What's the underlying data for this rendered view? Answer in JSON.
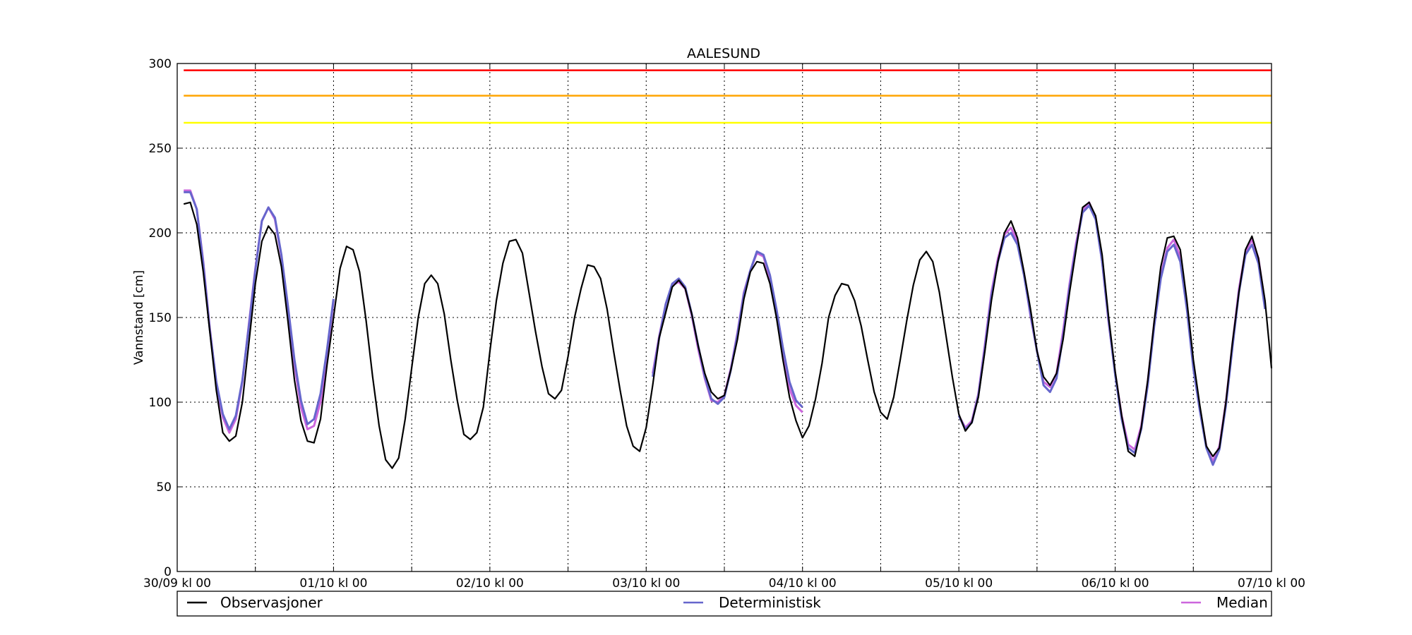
{
  "chart_data": {
    "type": "line",
    "title": "AALESUND",
    "ylabel": "Vannstand [cm]",
    "xlabel": "",
    "xlim": [
      0,
      168
    ],
    "ylim": [
      0,
      300
    ],
    "grid": true,
    "legend_position": "bottom",
    "x_unit": "hours since 30/09 kl 00",
    "x_ticks": [
      0,
      24,
      48,
      72,
      96,
      120,
      144,
      168
    ],
    "x_tick_labels": [
      "30/09 kl 00",
      "01/10 kl 00",
      "02/10 kl 00",
      "03/10 kl 00",
      "04/10 kl 00",
      "05/10 kl 00",
      "06/10 kl 00",
      "07/10 kl 00"
    ],
    "y_ticks": [
      0,
      50,
      100,
      150,
      200,
      250,
      300
    ],
    "thresholds": [
      {
        "value": 296,
        "color": "#ff0000"
      },
      {
        "value": 281,
        "color": "#ffa500"
      },
      {
        "value": 265,
        "color": "#ffff00"
      }
    ],
    "series": [
      {
        "name": "Observasjoner",
        "color": "#000000",
        "x": [
          1,
          2,
          3,
          4,
          5,
          6,
          7,
          8,
          9,
          10,
          11,
          12,
          13,
          14,
          15,
          16,
          17,
          18,
          19,
          20,
          21,
          22,
          23,
          24,
          25,
          26,
          27,
          28,
          29,
          30,
          31,
          32,
          33,
          34,
          35,
          36,
          37,
          38,
          39,
          40,
          41,
          42,
          43,
          44,
          45,
          46,
          47,
          48,
          49,
          50,
          51,
          52,
          53,
          54,
          55,
          56,
          57,
          58,
          59,
          60,
          61,
          62,
          63,
          64,
          65,
          66,
          67,
          68,
          69,
          70,
          71,
          72,
          73,
          74,
          75,
          76,
          77,
          78,
          79,
          80,
          81,
          82,
          83,
          84,
          85,
          86,
          87,
          88,
          89,
          90,
          91,
          92,
          93,
          94,
          95,
          96,
          97,
          98,
          99,
          100,
          101,
          102,
          103,
          104,
          105,
          106,
          107,
          108,
          109,
          110,
          111,
          112,
          113,
          114,
          115,
          116,
          117,
          118,
          119,
          120,
          121,
          122,
          123,
          124,
          125,
          126,
          127,
          128,
          129,
          130,
          131,
          132,
          133,
          134,
          135,
          136,
          137,
          138,
          139,
          140,
          141,
          142,
          143,
          144,
          145,
          146,
          147,
          148,
          149,
          150,
          151,
          152,
          153,
          154,
          155,
          156,
          157,
          158,
          159,
          160,
          161,
          162,
          163,
          164,
          165,
          166,
          167,
          168
        ],
        "values": [
          217,
          218,
          205,
          177,
          142,
          107,
          82,
          77,
          80,
          100,
          135,
          170,
          195,
          204,
          199,
          180,
          148,
          113,
          89,
          77,
          76,
          90,
          122,
          150,
          179,
          192,
          190,
          177,
          148,
          115,
          86,
          66,
          61,
          67,
          90,
          120,
          150,
          170,
          175,
          170,
          152,
          125,
          101,
          81,
          78,
          82,
          97,
          130,
          160,
          182,
          195,
          196,
          188,
          165,
          142,
          121,
          105,
          102,
          107,
          127,
          150,
          167,
          181,
          180,
          173,
          155,
          130,
          107,
          86,
          74,
          71,
          85,
          110,
          138,
          153,
          168,
          172,
          167,
          152,
          133,
          117,
          106,
          102,
          104,
          119,
          137,
          161,
          177,
          183,
          182,
          170,
          150,
          125,
          103,
          89,
          79,
          86,
          102,
          123,
          150,
          163,
          170,
          169,
          160,
          145,
          125,
          106,
          94,
          90,
          103,
          125,
          148,
          169,
          184,
          189,
          183,
          165,
          140,
          115,
          93,
          83,
          88,
          103,
          130,
          160,
          183,
          200,
          207,
          197,
          177,
          155,
          130,
          115,
          110,
          117,
          137,
          165,
          190,
          215,
          218,
          210,
          187,
          150,
          118,
          92,
          71,
          68,
          85,
          113,
          148,
          180,
          197,
          198,
          190,
          160,
          125,
          98,
          74,
          68,
          73,
          100,
          135,
          165,
          190,
          198,
          185,
          160,
          120
        ]
      },
      {
        "name": "Deterministisk",
        "color": "#6666cc",
        "segments": [
          {
            "x": [
              1,
              2,
              3,
              4,
              5,
              6,
              7,
              8,
              9,
              10,
              11,
              12,
              13,
              14,
              15,
              16,
              17,
              18,
              19,
              20,
              21,
              22,
              23,
              24
            ],
            "values": [
              224,
              224,
              214,
              182,
              143,
              112,
              93,
              84,
              92,
              113,
              145,
              178,
              207,
              215,
              209,
              187,
              157,
              125,
              101,
              87,
              90,
              105,
              131,
              161
            ]
          },
          {
            "x": [
              73,
              74,
              75,
              76,
              77,
              78,
              79,
              80,
              81,
              82,
              83,
              84,
              85,
              86,
              87,
              88,
              89,
              90,
              91,
              92,
              93,
              94,
              95,
              96
            ],
            "values": [
              115,
              138,
              158,
              170,
              173,
              168,
              152,
              133,
              115,
              102,
              99,
              103,
              119,
              140,
              164,
              178,
              189,
              187,
              175,
              155,
              132,
              112,
              101,
              97
            ]
          },
          {
            "x": [
              120,
              121,
              122,
              123,
              124,
              125,
              126,
              127,
              128,
              129,
              130,
              131,
              132,
              133,
              134,
              135,
              136,
              137,
              138,
              139,
              140,
              141,
              142,
              143,
              144,
              145,
              146,
              147,
              148,
              149,
              150,
              151,
              152,
              153,
              154,
              155,
              156,
              157,
              158,
              159,
              160,
              161,
              162,
              163,
              164,
              165,
              166,
              167
            ],
            "values": [
              92,
              84,
              88,
              104,
              132,
              163,
              183,
              197,
              200,
              193,
              175,
              152,
              130,
              110,
              106,
              114,
              139,
              168,
              192,
              212,
              216,
              208,
              183,
              148,
              116,
              90,
              73,
              70,
              84,
              110,
              145,
              173,
              189,
              193,
              183,
              155,
              120,
              95,
              73,
              63,
              72,
              98,
              132,
              165,
              187,
              193,
              182,
              155
            ]
          }
        ]
      },
      {
        "name": "Median",
        "color": "#cc66dd",
        "segments": [
          {
            "x": [
              1,
              2,
              3,
              4,
              5,
              6,
              7,
              8,
              9,
              10,
              11,
              12,
              13,
              14,
              15,
              16,
              17,
              18,
              19,
              20,
              21,
              22,
              23,
              24
            ],
            "values": [
              225,
              225,
              214,
              183,
              144,
              111,
              91,
              82,
              90,
              112,
              146,
              179,
              207,
              215,
              208,
              186,
              156,
              122,
              97,
              84,
              86,
              100,
              128,
              160
            ]
          },
          {
            "x": [
              73,
              74,
              75,
              76,
              77,
              78,
              79,
              80,
              81,
              82,
              83,
              84,
              85,
              86,
              87,
              88,
              89,
              90,
              91,
              92,
              93,
              94,
              95,
              96
            ],
            "values": [
              117,
              139,
              158,
              169,
              171,
              167,
              151,
              131,
              114,
              101,
              100,
              104,
              120,
              141,
              165,
              178,
              188,
              186,
              173,
              152,
              128,
              108,
              98,
              94
            ]
          },
          {
            "x": [
              120,
              121,
              122,
              123,
              124,
              125,
              126,
              127,
              128,
              129,
              130,
              131,
              132,
              133,
              134,
              135,
              136,
              137,
              138,
              139,
              140,
              141,
              142,
              143,
              144,
              145,
              146,
              147,
              148,
              149,
              150,
              151,
              152,
              153,
              154,
              155,
              156,
              157,
              158,
              159,
              160,
              161,
              162,
              163,
              164,
              165,
              166,
              167
            ],
            "values": [
              92,
              85,
              89,
              105,
              134,
              165,
              185,
              199,
              203,
              195,
              176,
              151,
              130,
              112,
              109,
              117,
              142,
              170,
              194,
              213,
              218,
              209,
              183,
              147,
              117,
              92,
              75,
              72,
              86,
              112,
              147,
              175,
              191,
              196,
              186,
              158,
              121,
              96,
              74,
              65,
              74,
              100,
              134,
              167,
              189,
              196,
              185,
              158
            ]
          }
        ]
      }
    ]
  }
}
